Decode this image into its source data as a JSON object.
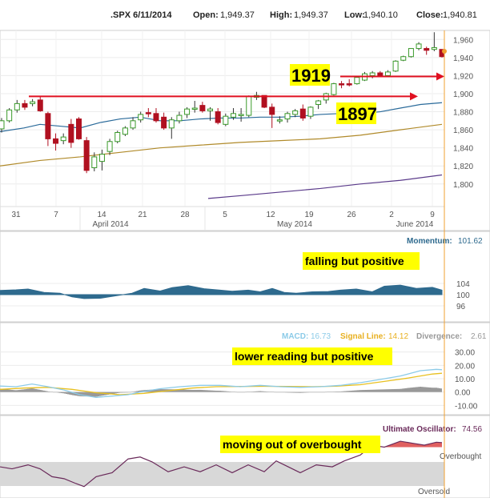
{
  "header": {
    "symbol_date": ".SPX 6/11/2014",
    "open_label": "Open:",
    "open": "1,949.37",
    "high_label": "High:",
    "high": "1,949.37",
    "low_label": "Low:",
    "low": "1,940.10",
    "close_label": "Close:",
    "close": "1,940.81"
  },
  "colors": {
    "up": "#3a9a2a",
    "down": "#b01020",
    "sma20": "#2a6a9a",
    "sma50": "#b08a2a",
    "sma200": "#5a3a8a",
    "momentum": "#2e6a8e",
    "macd": "#8ccbe8",
    "signal": "#e8c020",
    "histogram": "#999999",
    "uo": "#6a2a5a",
    "uo_fill": "#e06060",
    "arrow": "#e01020"
  },
  "chart_data": [
    {
      "type": "candlestick",
      "ylim": [
        1775,
        1970
      ],
      "y_ticks": [
        "1,960",
        "1,940",
        "1,920",
        "1,900",
        "1,880",
        "1,860",
        "1,840",
        "1,820",
        "1,800"
      ],
      "x_ticks": [
        "31",
        "7",
        "14",
        "21",
        "28",
        "5",
        "12",
        "19",
        "26",
        "2",
        "9"
      ],
      "months": [
        "April 2014",
        "May 2014",
        "June 2014"
      ],
      "candles": [
        {
          "o": 1861,
          "h": 1873,
          "l": 1857,
          "c": 1870
        },
        {
          "o": 1870,
          "h": 1884,
          "l": 1868,
          "c": 1882
        },
        {
          "o": 1882,
          "h": 1893,
          "l": 1879,
          "c": 1889
        },
        {
          "o": 1889,
          "h": 1893,
          "l": 1882,
          "c": 1885
        },
        {
          "o": 1889,
          "h": 1894,
          "l": 1886,
          "c": 1891
        },
        {
          "o": 1893,
          "h": 1897,
          "l": 1880,
          "c": 1881
        },
        {
          "o": 1878,
          "h": 1880,
          "l": 1842,
          "c": 1850
        },
        {
          "o": 1850,
          "h": 1856,
          "l": 1837,
          "c": 1845
        },
        {
          "o": 1848,
          "h": 1856,
          "l": 1844,
          "c": 1852
        },
        {
          "o": 1866,
          "h": 1872,
          "l": 1840,
          "c": 1846
        },
        {
          "o": 1872,
          "h": 1874,
          "l": 1849,
          "c": 1850
        },
        {
          "o": 1848,
          "h": 1852,
          "l": 1812,
          "c": 1815
        },
        {
          "o": 1818,
          "h": 1835,
          "l": 1814,
          "c": 1830
        },
        {
          "o": 1825,
          "h": 1838,
          "l": 1815,
          "c": 1833
        },
        {
          "o": 1836,
          "h": 1850,
          "l": 1832,
          "c": 1847
        },
        {
          "o": 1847,
          "h": 1859,
          "l": 1845,
          "c": 1857
        },
        {
          "o": 1855,
          "h": 1864,
          "l": 1853,
          "c": 1862
        },
        {
          "o": 1862,
          "h": 1874,
          "l": 1860,
          "c": 1870
        },
        {
          "o": 1871,
          "h": 1880,
          "l": 1868,
          "c": 1877
        },
        {
          "o": 1879,
          "h": 1884,
          "l": 1874,
          "c": 1878
        },
        {
          "o": 1878,
          "h": 1884,
          "l": 1868,
          "c": 1870
        },
        {
          "o": 1874,
          "h": 1879,
          "l": 1860,
          "c": 1862
        },
        {
          "o": 1862,
          "h": 1874,
          "l": 1850,
          "c": 1871
        },
        {
          "o": 1870,
          "h": 1880,
          "l": 1867,
          "c": 1876
        },
        {
          "o": 1877,
          "h": 1885,
          "l": 1873,
          "c": 1883
        },
        {
          "o": 1883,
          "h": 1892,
          "l": 1879,
          "c": 1884
        },
        {
          "o": 1887,
          "h": 1891,
          "l": 1879,
          "c": 1881
        },
        {
          "o": 1881,
          "h": 1885,
          "l": 1870,
          "c": 1883
        },
        {
          "o": 1880,
          "h": 1884,
          "l": 1866,
          "c": 1868
        },
        {
          "o": 1866,
          "h": 1878,
          "l": 1864,
          "c": 1875
        },
        {
          "o": 1874,
          "h": 1884,
          "l": 1871,
          "c": 1878
        },
        {
          "o": 1877,
          "h": 1884,
          "l": 1869,
          "c": 1877
        },
        {
          "o": 1876,
          "h": 1898,
          "l": 1874,
          "c": 1897
        },
        {
          "o": 1896,
          "h": 1902,
          "l": 1893,
          "c": 1898
        },
        {
          "o": 1898,
          "h": 1898,
          "l": 1884,
          "c": 1885
        },
        {
          "o": 1885,
          "h": 1889,
          "l": 1862,
          "c": 1877
        },
        {
          "o": 1870,
          "h": 1875,
          "l": 1867,
          "c": 1871
        },
        {
          "o": 1872,
          "h": 1880,
          "l": 1868,
          "c": 1878
        },
        {
          "o": 1877,
          "h": 1883,
          "l": 1874,
          "c": 1881
        },
        {
          "o": 1883,
          "h": 1888,
          "l": 1870,
          "c": 1873
        },
        {
          "o": 1875,
          "h": 1886,
          "l": 1872,
          "c": 1885
        },
        {
          "o": 1888,
          "h": 1893,
          "l": 1883,
          "c": 1892
        },
        {
          "o": 1893,
          "h": 1901,
          "l": 1889,
          "c": 1900
        },
        {
          "o": 1899,
          "h": 1912,
          "l": 1898,
          "c": 1911
        },
        {
          "o": 1911,
          "h": 1914,
          "l": 1906,
          "c": 1910
        },
        {
          "o": 1911,
          "h": 1916,
          "l": 1908,
          "c": 1910
        },
        {
          "o": 1911,
          "h": 1917,
          "l": 1910,
          "c": 1918
        },
        {
          "o": 1915,
          "h": 1924,
          "l": 1914,
          "c": 1922
        },
        {
          "o": 1920,
          "h": 1925,
          "l": 1917,
          "c": 1923
        },
        {
          "o": 1923,
          "h": 1925,
          "l": 1919,
          "c": 1920
        },
        {
          "o": 1920,
          "h": 1926,
          "l": 1920,
          "c": 1924
        },
        {
          "o": 1925,
          "h": 1937,
          "l": 1924,
          "c": 1936
        },
        {
          "o": 1937,
          "h": 1942,
          "l": 1936,
          "c": 1941
        },
        {
          "o": 1941,
          "h": 1950,
          "l": 1940,
          "c": 1950
        },
        {
          "o": 1950,
          "h": 1957,
          "l": 1948,
          "c": 1955
        },
        {
          "o": 1950,
          "h": 1952,
          "l": 1943,
          "c": 1948
        },
        {
          "o": 1949,
          "h": 1968,
          "l": 1947,
          "c": 1951
        },
        {
          "o": 1949,
          "h": 1949,
          "l": 1940,
          "c": 1941
        }
      ],
      "sma20": [
        [
          0,
          1858
        ],
        [
          30,
          1862
        ],
        [
          50,
          1866
        ],
        [
          75,
          1864
        ],
        [
          100,
          1862
        ],
        [
          125,
          1868
        ],
        [
          150,
          1872
        ],
        [
          175,
          1874
        ],
        [
          200,
          1870
        ],
        [
          225,
          1870
        ],
        [
          250,
          1872
        ],
        [
          275,
          1873
        ],
        [
          300,
          1873
        ],
        [
          325,
          1874
        ],
        [
          350,
          1874
        ],
        [
          375,
          1875
        ],
        [
          400,
          1877
        ],
        [
          425,
          1878
        ],
        [
          450,
          1878
        ],
        [
          475,
          1880
        ],
        [
          500,
          1884
        ],
        [
          525,
          1888
        ],
        [
          552,
          1890
        ]
      ],
      "sma50": [
        [
          0,
          1820
        ],
        [
          50,
          1826
        ],
        [
          100,
          1830
        ],
        [
          150,
          1835
        ],
        [
          200,
          1840
        ],
        [
          250,
          1843
        ],
        [
          300,
          1846
        ],
        [
          350,
          1848
        ],
        [
          400,
          1850
        ],
        [
          450,
          1854
        ],
        [
          500,
          1860
        ],
        [
          552,
          1866
        ]
      ],
      "sma200": [
        [
          260,
          1784
        ],
        [
          300,
          1787
        ],
        [
          350,
          1791
        ],
        [
          400,
          1795
        ],
        [
          450,
          1800
        ],
        [
          500,
          1804
        ],
        [
          552,
          1810
        ]
      ],
      "levels": [
        {
          "label": "1919",
          "value": 1919
        },
        {
          "label": "1897",
          "value": 1897
        }
      ]
    },
    {
      "type": "area",
      "title": "Momentum:",
      "current": "101.62",
      "ylim": [
        92,
        108
      ],
      "y_ticks": [
        "104",
        "100",
        "96"
      ],
      "values": [
        [
          0,
          101.5
        ],
        [
          20,
          101.7
        ],
        [
          35,
          102.0
        ],
        [
          55,
          100.8
        ],
        [
          75,
          100.5
        ],
        [
          90,
          99.2
        ],
        [
          105,
          98.6
        ],
        [
          125,
          98.7
        ],
        [
          145,
          99.6
        ],
        [
          165,
          100.5
        ],
        [
          180,
          102.2
        ],
        [
          200,
          101.3
        ],
        [
          215,
          102.5
        ],
        [
          235,
          103.2
        ],
        [
          255,
          102.1
        ],
        [
          275,
          101.6
        ],
        [
          290,
          101.2
        ],
        [
          310,
          101.6
        ],
        [
          325,
          101.0
        ],
        [
          340,
          102.2
        ],
        [
          355,
          100.8
        ],
        [
          370,
          100.5
        ],
        [
          390,
          101.0
        ],
        [
          410,
          101.1
        ],
        [
          425,
          101.6
        ],
        [
          445,
          102.0
        ],
        [
          465,
          101.0
        ],
        [
          480,
          103.0
        ],
        [
          500,
          103.4
        ],
        [
          520,
          102.2
        ],
        [
          540,
          102.6
        ],
        [
          552,
          101.6
        ]
      ]
    },
    {
      "type": "line",
      "series": [
        {
          "name": "MACD:",
          "current": "16.73"
        },
        {
          "name": "Signal Line:",
          "current": "14.12"
        },
        {
          "name": "Divergence:",
          "current": "2.61"
        }
      ],
      "ylim": [
        -14,
        34
      ],
      "y_ticks": [
        "30.00",
        "20.00",
        "10.00",
        "0.00",
        "-10.00"
      ],
      "macd": [
        [
          0,
          4.5
        ],
        [
          20,
          4.0
        ],
        [
          40,
          6.0
        ],
        [
          60,
          4.0
        ],
        [
          80,
          1.5
        ],
        [
          100,
          -2.0
        ],
        [
          120,
          -4.0
        ],
        [
          140,
          -3.0
        ],
        [
          160,
          -2.0
        ],
        [
          175,
          0.0
        ],
        [
          200,
          2.5
        ],
        [
          225,
          4.0
        ],
        [
          250,
          5.0
        ],
        [
          275,
          5.0
        ],
        [
          300,
          4.0
        ],
        [
          325,
          5.0
        ],
        [
          350,
          4.0
        ],
        [
          375,
          3.5
        ],
        [
          400,
          4.0
        ],
        [
          425,
          5.0
        ],
        [
          450,
          7.0
        ],
        [
          475,
          9.5
        ],
        [
          500,
          12.0
        ],
        [
          525,
          16.0
        ],
        [
          545,
          17.0
        ],
        [
          552,
          16.7
        ]
      ],
      "signal": [
        [
          0,
          2.0
        ],
        [
          30,
          3.0
        ],
        [
          60,
          3.5
        ],
        [
          90,
          2.0
        ],
        [
          120,
          -0.5
        ],
        [
          150,
          -2.0
        ],
        [
          180,
          -1.0
        ],
        [
          210,
          1.0
        ],
        [
          240,
          3.0
        ],
        [
          270,
          4.0
        ],
        [
          300,
          4.2
        ],
        [
          330,
          4.3
        ],
        [
          360,
          4.2
        ],
        [
          390,
          4.0
        ],
        [
          420,
          4.4
        ],
        [
          450,
          5.5
        ],
        [
          480,
          8.0
        ],
        [
          510,
          10.5
        ],
        [
          540,
          13.5
        ],
        [
          552,
          14.1
        ]
      ]
    },
    {
      "type": "area",
      "title": "Ultimate Oscillator:",
      "current": "74.56",
      "levels": [
        "Overbought",
        "Oversold"
      ],
      "ylim": [
        20,
        85
      ],
      "values": [
        [
          0,
          50
        ],
        [
          15,
          48
        ],
        [
          35,
          52
        ],
        [
          50,
          48
        ],
        [
          65,
          40
        ],
        [
          80,
          38
        ],
        [
          95,
          33
        ],
        [
          105,
          30
        ],
        [
          120,
          40
        ],
        [
          140,
          44
        ],
        [
          160,
          58
        ],
        [
          175,
          60
        ],
        [
          190,
          55
        ],
        [
          210,
          45
        ],
        [
          230,
          50
        ],
        [
          250,
          45
        ],
        [
          270,
          52
        ],
        [
          290,
          44
        ],
        [
          310,
          52
        ],
        [
          330,
          45
        ],
        [
          345,
          56
        ],
        [
          360,
          50
        ],
        [
          375,
          44
        ],
        [
          395,
          52
        ],
        [
          415,
          50
        ],
        [
          430,
          56
        ],
        [
          450,
          62
        ],
        [
          465,
          72
        ],
        [
          480,
          70
        ],
        [
          500,
          76
        ],
        [
          515,
          74
        ],
        [
          530,
          72
        ],
        [
          545,
          75
        ],
        [
          552,
          74.6
        ]
      ]
    }
  ],
  "annotations": {
    "level_1919": "1919",
    "level_1897": "1897",
    "momentum_note": "falling but positive",
    "macd_note": "lower reading but positive",
    "uo_note": "moving out of overbought"
  }
}
